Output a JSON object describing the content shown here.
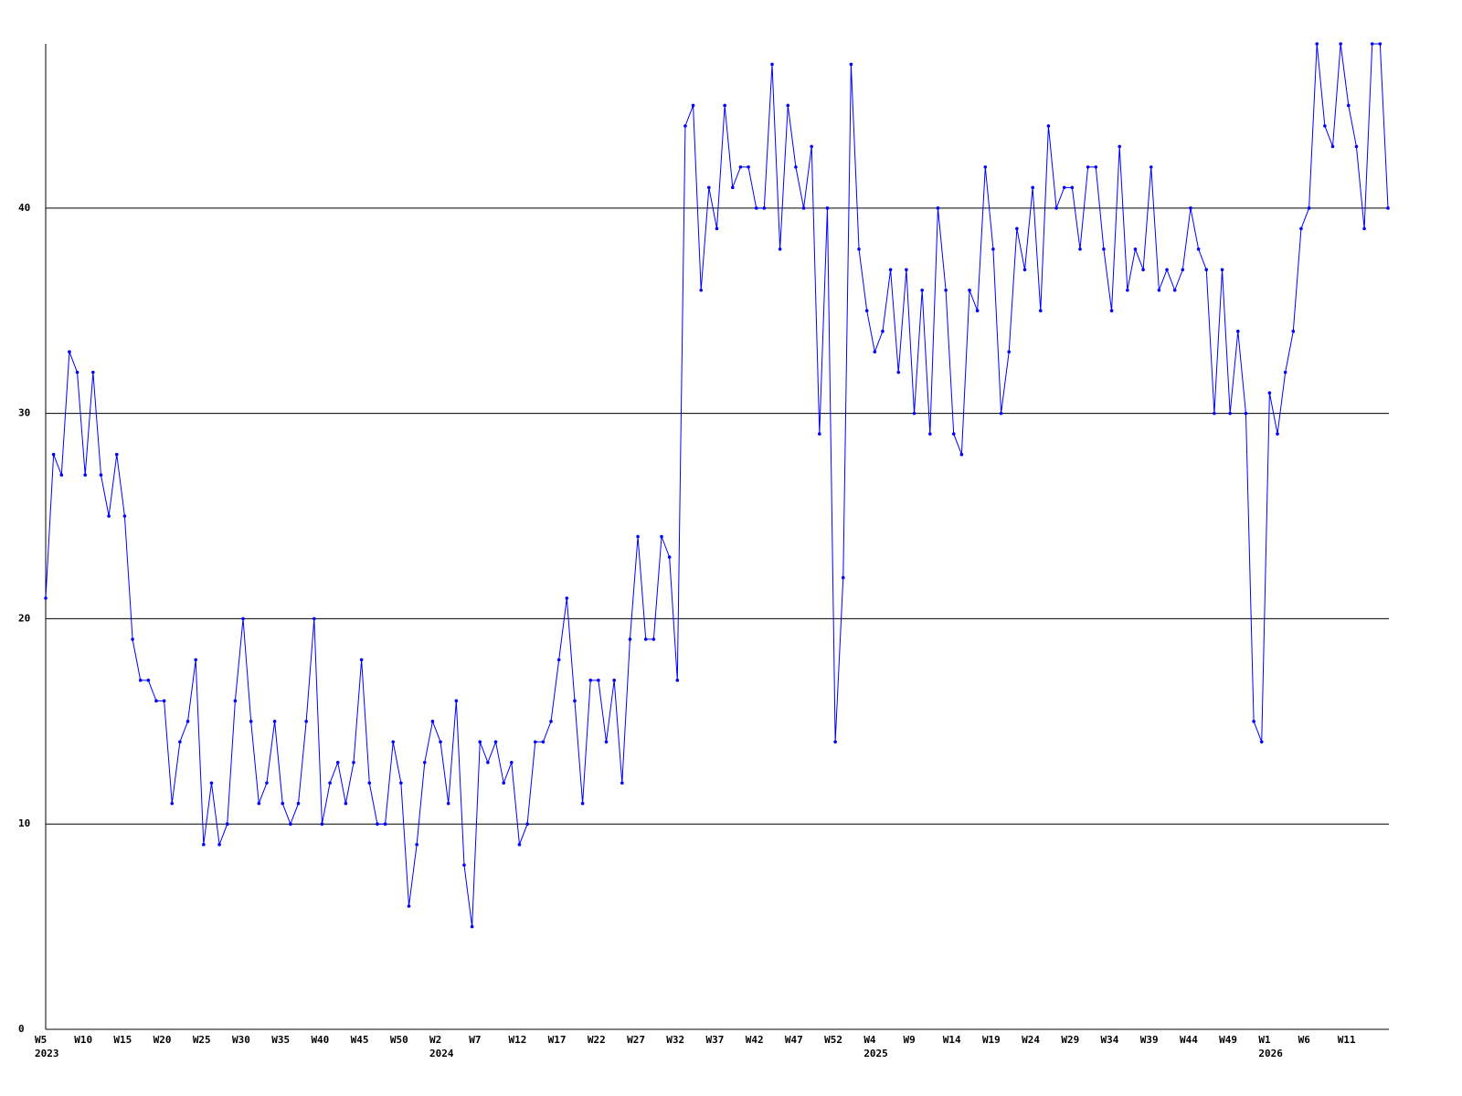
{
  "chart_data": {
    "type": "line",
    "categories": [
      "W5",
      null,
      null,
      null,
      null,
      "W10",
      null,
      null,
      null,
      null,
      "W15",
      null,
      null,
      null,
      null,
      "W20",
      null,
      null,
      null,
      null,
      "W25",
      null,
      null,
      null,
      null,
      "W30",
      null,
      null,
      null,
      null,
      "W35",
      null,
      null,
      null,
      null,
      "W40",
      null,
      null,
      null,
      null,
      "W45",
      null,
      null,
      null,
      null,
      "W50",
      null,
      null,
      null,
      null,
      "W2",
      null,
      null,
      null,
      null,
      "W7",
      null,
      null,
      null,
      null,
      "W12",
      null,
      null,
      null,
      null,
      "W17",
      null,
      null,
      null,
      null,
      "W22",
      null,
      null,
      null,
      null,
      "W27",
      null,
      null,
      null,
      null,
      "W32",
      null,
      null,
      null,
      null,
      "W37",
      null,
      null,
      null,
      null,
      "W42",
      null,
      null,
      null,
      null,
      "W47",
      null,
      null,
      null,
      null,
      "W52",
      null,
      null,
      null,
      null,
      "W4",
      null,
      null,
      null,
      null,
      "W9",
      null,
      null,
      null,
      null,
      "W14",
      null,
      null,
      null,
      null,
      "W19",
      null,
      null,
      null,
      null,
      "W24",
      null,
      null,
      null,
      null,
      "W29",
      null,
      null,
      null,
      null,
      "W34",
      null,
      null,
      null,
      null,
      "W39",
      null,
      null,
      null,
      null,
      "W44",
      null,
      null,
      null,
      null,
      "W49",
      null,
      null,
      null,
      null,
      "W1",
      null,
      null,
      null,
      null,
      "W6",
      null,
      null,
      null,
      null,
      "W11",
      null,
      null,
      null,
      null,
      null
    ],
    "year_labels": [
      "2023",
      null,
      null,
      null,
      null,
      null,
      null,
      null,
      null,
      null,
      null,
      null,
      null,
      null,
      null,
      null,
      null,
      null,
      null,
      null,
      null,
      null,
      null,
      null,
      null,
      null,
      null,
      null,
      null,
      null,
      null,
      null,
      null,
      null,
      null,
      null,
      null,
      null,
      null,
      null,
      null,
      null,
      null,
      null,
      null,
      null,
      null,
      null,
      null,
      null,
      "2024",
      null,
      null,
      null,
      null,
      null,
      null,
      null,
      null,
      null,
      null,
      null,
      null,
      null,
      null,
      null,
      null,
      null,
      null,
      null,
      null,
      null,
      null,
      null,
      null,
      null,
      null,
      null,
      null,
      null,
      null,
      null,
      null,
      null,
      null,
      null,
      null,
      null,
      null,
      null,
      null,
      null,
      null,
      null,
      null,
      null,
      null,
      null,
      null,
      null,
      null,
      null,
      null,
      null,
      null,
      "2025",
      null,
      null,
      null,
      null,
      null,
      null,
      null,
      null,
      null,
      null,
      null,
      null,
      null,
      null,
      null,
      null,
      null,
      null,
      null,
      null,
      null,
      null,
      null,
      null,
      null,
      null,
      null,
      null,
      null,
      null,
      null,
      null,
      null,
      null,
      null,
      null,
      null,
      null,
      null,
      null,
      null,
      null,
      null,
      null,
      null,
      null,
      null,
      null,
      null,
      "2026",
      null,
      null,
      null,
      null,
      null,
      null,
      null,
      null,
      null,
      null,
      null,
      null,
      null,
      null,
      null
    ],
    "series": [
      {
        "color": "#0000ff",
        "values": [
          21,
          28,
          27,
          33,
          32,
          27,
          32,
          27,
          25,
          28,
          25,
          19,
          17,
          17,
          16,
          16,
          11,
          14,
          15,
          18,
          9,
          12,
          9,
          10,
          16,
          20,
          15,
          11,
          12,
          15,
          11,
          10,
          11,
          15,
          20,
          10,
          12,
          13,
          11,
          13,
          18,
          12,
          10,
          10,
          14,
          12,
          6,
          9,
          13,
          15,
          14,
          11,
          16,
          8,
          5,
          14,
          13,
          14,
          12,
          13,
          9,
          10,
          14,
          14,
          15,
          18,
          21,
          16,
          11,
          17,
          17,
          14,
          17,
          12,
          19,
          24,
          19,
          19,
          24,
          23,
          17,
          44,
          45,
          36,
          41,
          39,
          45,
          41,
          42,
          42,
          40,
          40,
          47,
          38,
          45,
          42,
          40,
          43,
          29,
          40,
          14,
          22,
          47,
          38,
          35,
          33,
          34,
          37,
          32,
          37,
          30,
          36,
          29,
          40,
          36,
          29,
          28,
          36,
          35,
          42,
          38,
          30,
          33,
          39,
          37,
          41,
          35,
          44,
          40,
          41,
          41,
          38,
          42,
          42,
          38,
          35,
          43,
          36,
          38,
          37,
          42,
          36,
          37,
          36,
          37,
          40,
          38,
          37,
          30,
          37,
          30,
          34,
          30,
          15,
          14,
          31,
          29,
          32,
          34,
          39,
          40,
          48,
          44,
          43,
          48,
          45,
          43,
          39,
          48,
          48,
          40
        ]
      }
    ],
    "ylim": [
      0,
      48
    ],
    "yticks": [
      0,
      10,
      20,
      30,
      40
    ],
    "grid": true
  }
}
